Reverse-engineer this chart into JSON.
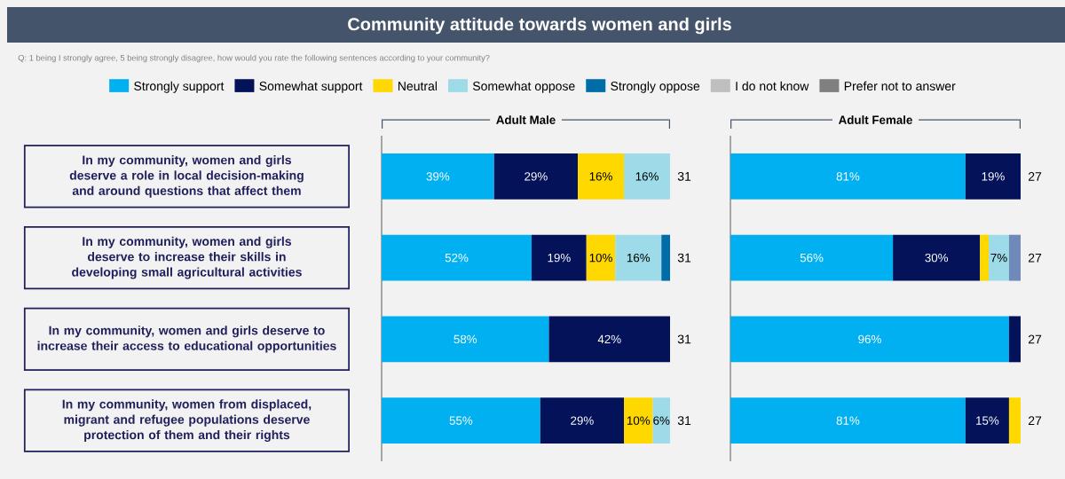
{
  "chart_data": [
    {
      "type": "bar",
      "orientation": "horizontal",
      "stacked": true,
      "title": "Community attitude towards women and girls",
      "subtitle": "Q: 1 being I strongly agree, 5 being strongly disagree, how would you rate the following sentences according to your community?",
      "xlabel": "Adult Male",
      "legend": "top",
      "categories": [
        "In my community, women and girls deserve a role in local decision-making and around questions that affect them",
        "In my community, women and girls deserve to increase their skills in developing small agricultural activities",
        "In my community, women and girls deserve to increase their access to educational opportunities",
        "In my community, women from displaced, migrant and refugee populations deserve protection of them and their rights"
      ],
      "xlim": [
        0,
        100
      ],
      "series": [
        {
          "name": "Strongly support",
          "color": "#00b0f0",
          "values": [
            39,
            52,
            58,
            55
          ],
          "value_labels": [
            "39%",
            "52%",
            "58%",
            "55%"
          ]
        },
        {
          "name": "Somewhat support",
          "color": "#04125a",
          "values": [
            29,
            19,
            42,
            29
          ],
          "value_labels": [
            "29%",
            "19%",
            "42%",
            "29%"
          ]
        },
        {
          "name": "Neutral",
          "color": "#ffd800",
          "values": [
            16,
            10,
            null,
            10
          ],
          "value_labels": [
            "16%",
            "10%",
            null,
            "10%"
          ]
        },
        {
          "name": "Somewhat oppose",
          "color": "#9ddbe8",
          "values": [
            16,
            16,
            null,
            6
          ],
          "value_labels": [
            "16%",
            "16%",
            null,
            "6%"
          ]
        },
        {
          "name": "Strongly oppose",
          "color": "#006ca8",
          "values": [
            null,
            3,
            null,
            null
          ],
          "value_labels": [
            null,
            null,
            null,
            null
          ]
        },
        {
          "name": "I do not know",
          "color": "#bfbfbf",
          "values": [
            null,
            null,
            null,
            null
          ]
        },
        {
          "name": "Prefer not to answer",
          "color": "#7f7f7f",
          "values": [
            null,
            null,
            null,
            null
          ]
        }
      ],
      "annotations": [
        "31",
        "31",
        "31",
        "31"
      ]
    },
    {
      "type": "bar",
      "orientation": "horizontal",
      "stacked": true,
      "xlabel": "Adult Female",
      "tick_labels": false,
      "categories": [
        null,
        null,
        null,
        null
      ],
      "xlim": [
        0,
        100
      ],
      "series": [
        {
          "color": "#00b0f0",
          "values": [
            81,
            56,
            96,
            81
          ],
          "value_labels": [
            "81%",
            "56%",
            "96%",
            "81%"
          ]
        },
        {
          "color": "#04125a",
          "values": [
            19,
            30,
            4,
            15
          ],
          "value_labels": [
            "19%",
            "30%",
            null,
            "15%"
          ]
        },
        {
          "color": "#ffd800",
          "values": [
            null,
            3,
            null,
            4
          ],
          "value_labels": [
            null,
            null,
            null,
            null
          ]
        },
        {
          "color": "#9ddbe8",
          "values": [
            null,
            7,
            null,
            null
          ],
          "value_labels": [
            null,
            "7%",
            null,
            null
          ]
        },
        {
          "color": "#6f8ab8",
          "values": [
            null,
            4,
            null,
            null
          ],
          "value_labels": [
            null,
            null,
            null,
            null
          ]
        }
      ],
      "annotations": [
        "27",
        "27",
        "27",
        "27"
      ]
    }
  ]
}
